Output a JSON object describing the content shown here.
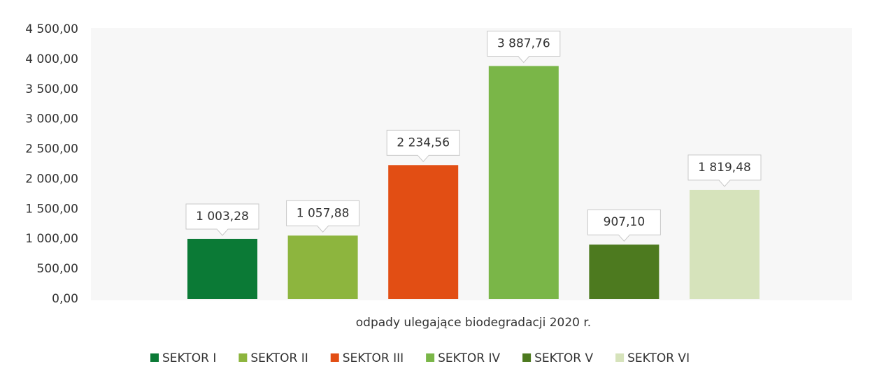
{
  "chart_data": {
    "type": "bar",
    "categories": [
      "odpady ulegające biodegradacji 2020 r."
    ],
    "series": [
      {
        "name": "SEKTOR I",
        "color": "#0b7a36",
        "values": [
          1003.28
        ],
        "value_labels": [
          "1 003,28"
        ]
      },
      {
        "name": "SEKTOR II",
        "color": "#8db53e",
        "values": [
          1057.88
        ],
        "value_labels": [
          "1 057,88"
        ]
      },
      {
        "name": "SEKTOR III",
        "color": "#e24e14",
        "values": [
          2234.56
        ],
        "value_labels": [
          "2 234,56"
        ]
      },
      {
        "name": "SEKTOR IV",
        "color": "#7ab648",
        "values": [
          3887.76
        ],
        "value_labels": [
          "3 887,76"
        ]
      },
      {
        "name": "SEKTOR V",
        "color": "#4d7a1f",
        "values": [
          907.1
        ],
        "value_labels": [
          "907,10"
        ]
      },
      {
        "name": "SEKTOR VI",
        "color": "#d6e3bb",
        "values": [
          1819.48
        ],
        "value_labels": [
          "1 819,48"
        ]
      }
    ],
    "ylim": [
      0,
      4500
    ],
    "yticks": [
      {
        "value": 0,
        "label": "0,00"
      },
      {
        "value": 500,
        "label": "500,00"
      },
      {
        "value": 1000,
        "label": "1 000,00"
      },
      {
        "value": 1500,
        "label": "1 500,00"
      },
      {
        "value": 2000,
        "label": "2 000,00"
      },
      {
        "value": 2500,
        "label": "2 500,00"
      },
      {
        "value": 3000,
        "label": "3 000,00"
      },
      {
        "value": 3500,
        "label": "3 500,00"
      },
      {
        "value": 4000,
        "label": "4 000,00"
      },
      {
        "value": 4500,
        "label": "4 500,00"
      }
    ],
    "grid": false,
    "legend": "bottom"
  }
}
